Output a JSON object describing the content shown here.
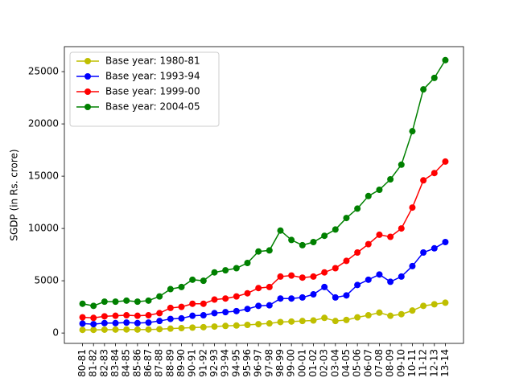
{
  "chart_data": {
    "type": "line",
    "y_label": "SGDP (in Rs. crore)",
    "categories": [
      "80-81",
      "81-82",
      "82-83",
      "83-84",
      "84-85",
      "85-86",
      "86-87",
      "87-88",
      "88-89",
      "89-90",
      "90-91",
      "91-92",
      "92-93",
      "93-94",
      "94-95",
      "95-96",
      "96-97",
      "97-98",
      "98-99",
      "99-00",
      "00-01",
      "01-02",
      "02-03",
      "03-04",
      "04-05",
      "05-06",
      "06-07",
      "07-08",
      "08-09",
      "09-10",
      "10-11",
      "11-12",
      "12-13",
      "13-14"
    ],
    "series": [
      {
        "name": "Base year: 1980-81",
        "color": "#bfbf00",
        "values": [
          300,
          300,
          320,
          330,
          340,
          330,
          340,
          370,
          420,
          470,
          520,
          560,
          620,
          680,
          720,
          780,
          850,
          920,
          1050,
          1100,
          1150,
          1200,
          1450,
          1150,
          1250,
          1500,
          1700,
          1950,
          1650,
          1800,
          2150,
          2600,
          2750,
          2900
        ]
      },
      {
        "name": "Base year: 1993-94",
        "color": "#0000ff",
        "values": [
          900,
          850,
          950,
          950,
          1000,
          950,
          1000,
          1150,
          1350,
          1400,
          1650,
          1700,
          1900,
          2000,
          2100,
          2300,
          2600,
          2650,
          3300,
          3300,
          3400,
          3700,
          4400,
          3400,
          3600,
          4600,
          5100,
          5600,
          4900,
          5400,
          6400,
          7700,
          8100,
          8700
        ]
      },
      {
        "name": "Base year: 1999-00",
        "color": "#ff0000",
        "values": [
          1500,
          1450,
          1600,
          1650,
          1700,
          1650,
          1700,
          1900,
          2400,
          2500,
          2800,
          2800,
          3200,
          3300,
          3500,
          3800,
          4300,
          4400,
          5400,
          5500,
          5300,
          5400,
          5800,
          6200,
          6900,
          7700,
          8500,
          9400,
          9200,
          10000,
          12000,
          14600,
          15300,
          16400
        ]
      },
      {
        "name": "Base year: 2004-05",
        "color": "#008000",
        "values": [
          2800,
          2600,
          3000,
          3000,
          3100,
          3000,
          3100,
          3500,
          4200,
          4400,
          5100,
          5000,
          5800,
          6000,
          6200,
          6700,
          7800,
          7900,
          9800,
          8900,
          8400,
          8700,
          9300,
          9900,
          11000,
          11900,
          13100,
          13700,
          14700,
          16100,
          19300,
          23300,
          24400,
          26100
        ]
      }
    ],
    "ylim": [
      -990,
      27390
    ],
    "yticks": [
      0,
      5000,
      10000,
      15000,
      20000,
      25000
    ],
    "legend": "upper left"
  }
}
